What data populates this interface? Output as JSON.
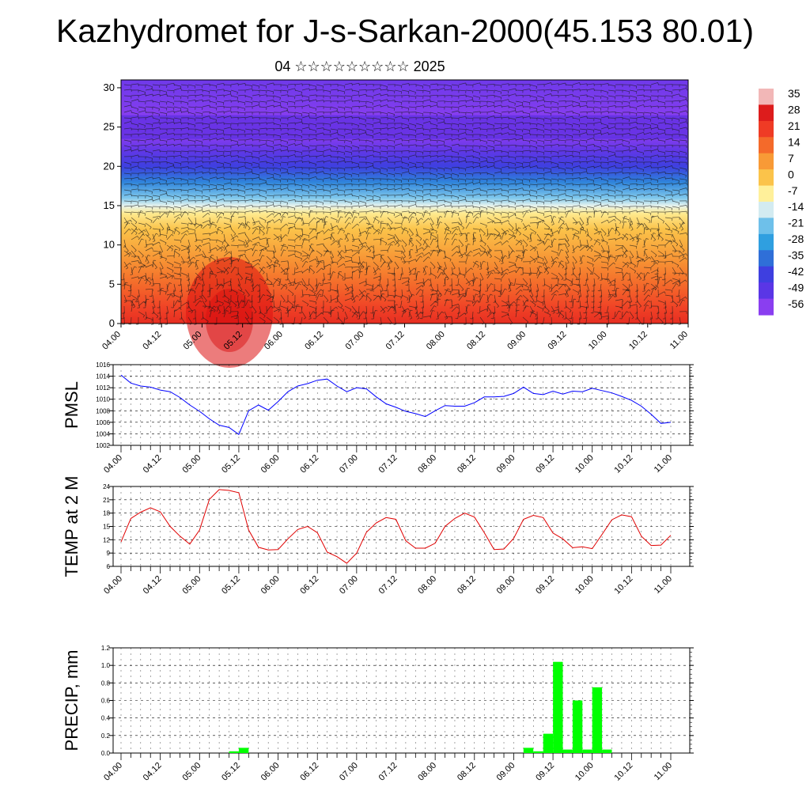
{
  "title": "Kazhydromet for J-s-Sarkan-2000(45.153 80.01)",
  "subtitle": "04 ☆☆☆☆☆☆☆☆☆ 2025",
  "time_ticks": [
    "04.00",
    "04.12",
    "05.00",
    "05.12",
    "06.00",
    "06.12",
    "07.00",
    "07.12",
    "08.00",
    "08.12",
    "09.00",
    "09.12",
    "10.00",
    "10.12",
    "11.00"
  ],
  "colorbar": {
    "labels": [
      "35",
      "28",
      "21",
      "14",
      "7",
      "0",
      "-7",
      "-14",
      "-21",
      "-28",
      "-35",
      "-42",
      "-49",
      "-56"
    ],
    "colors": [
      "#f5c6c6",
      "#d7191c",
      "#f0432a",
      "#f46d43",
      "#f9a03f",
      "#fdbf4f",
      "#feeaa0",
      "#d6ecf5",
      "#62b4e3",
      "#2b83c9",
      "#3f4fd8",
      "#5a3be0",
      "#7a35e8",
      "#9a3df0"
    ]
  },
  "chart_data": [
    {
      "type": "heatmap",
      "title": "",
      "description_of_field": "vertical cross-section with wind barbs",
      "x_ticks": [
        "04.00",
        "04.12",
        "05.00",
        "05.12",
        "06.00",
        "06.12",
        "07.00",
        "07.12",
        "08.00",
        "08.12",
        "09.00",
        "09.12",
        "10.00",
        "10.12",
        "11.00"
      ],
      "y_ticks": [
        0,
        5,
        10,
        15,
        20,
        25,
        30
      ],
      "ylim": [
        0,
        31
      ],
      "levels": [
        0,
        2,
        4,
        6,
        8,
        10,
        12,
        14,
        15,
        16,
        18,
        20,
        22,
        24,
        26,
        28,
        31
      ],
      "level_temps": [
        24,
        20,
        16,
        12,
        8,
        4,
        0,
        -6,
        -12,
        -20,
        -32,
        -42,
        -50,
        -57,
        -56,
        -54,
        -52
      ]
    },
    {
      "type": "line",
      "ylabel": "PMSL",
      "ylim": [
        1002,
        1016
      ],
      "y_ticks": [
        1002,
        1004,
        1006,
        1008,
        1010,
        1012,
        1014,
        1016
      ],
      "color": "#0000ff",
      "x_ticks": [
        "04.00",
        "04.12",
        "05.00",
        "05.12",
        "06.00",
        "06.12",
        "07.00",
        "07.12",
        "08.00",
        "08.12",
        "09.00",
        "09.12",
        "10.00",
        "10.12",
        "11.00"
      ],
      "values": [
        1014.2,
        1012.8,
        1012.3,
        1012.1,
        1011.6,
        1011.3,
        1010.3,
        1009.0,
        1007.9,
        1006.6,
        1005.5,
        1005.1,
        1003.9,
        1008.0,
        1009.0,
        1008.1,
        1009.6,
        1011.3,
        1012.3,
        1012.7,
        1013.3,
        1013.5,
        1012.3,
        1011.3,
        1012.0,
        1011.8,
        1010.4,
        1009.2,
        1008.6,
        1007.9,
        1007.5,
        1007.0,
        1008.0,
        1008.9,
        1008.8,
        1008.8,
        1009.4,
        1010.4,
        1010.4,
        1010.5,
        1011.0,
        1012.1,
        1011.0,
        1010.8,
        1011.4,
        1010.9,
        1011.4,
        1011.3,
        1011.9,
        1011.5,
        1011.1,
        1010.5,
        1009.8,
        1008.8,
        1007.4,
        1005.8,
        1006.0
      ]
    },
    {
      "type": "line",
      "ylabel": "TEMP at 2 M",
      "ylim": [
        6,
        24
      ],
      "y_ticks": [
        6,
        9,
        12,
        15,
        18,
        21,
        24
      ],
      "color": "#e00000",
      "x_ticks": [
        "04.00",
        "04.12",
        "05.00",
        "05.12",
        "06.00",
        "06.12",
        "07.00",
        "07.12",
        "08.00",
        "08.12",
        "09.00",
        "09.12",
        "10.00",
        "10.12",
        "11.00"
      ],
      "values": [
        11.5,
        16.8,
        18.2,
        19.2,
        18.3,
        15.0,
        12.8,
        11.0,
        14.2,
        21.1,
        23.3,
        23.1,
        22.6,
        14.2,
        10.3,
        9.7,
        9.8,
        12.2,
        14.3,
        15.0,
        13.6,
        9.2,
        8.2,
        6.7,
        9.0,
        13.7,
        15.8,
        17.0,
        16.6,
        11.8,
        10.1,
        10.1,
        11.2,
        15.0,
        16.8,
        18.0,
        17.1,
        13.6,
        9.8,
        9.9,
        12.3,
        16.6,
        17.5,
        17.0,
        13.5,
        12.2,
        10.2,
        10.4,
        10.0,
        13.2,
        16.5,
        17.6,
        17.2,
        12.8,
        10.7,
        10.8,
        13.0
      ]
    },
    {
      "type": "bar",
      "ylabel": "PRECIP, mm",
      "ylim": [
        0,
        1.2
      ],
      "y_ticks": [
        "0.0",
        "0.2",
        "0.4",
        "0.6",
        "0.8",
        "1.0",
        "1.2"
      ],
      "color": "#00ff00",
      "x_ticks": [
        "04.00",
        "04.12",
        "05.00",
        "05.12",
        "06.00",
        "06.12",
        "07.00",
        "07.12",
        "08.00",
        "08.12",
        "09.00",
        "09.12",
        "10.00",
        "10.12",
        "11.00"
      ],
      "values": [
        0,
        0,
        0,
        0,
        0,
        0,
        0,
        0,
        0,
        0,
        0,
        0.02,
        0.06,
        0,
        0,
        0,
        0,
        0,
        0,
        0,
        0,
        0,
        0,
        0,
        0,
        0,
        0,
        0,
        0,
        0,
        0,
        0,
        0,
        0,
        0,
        0,
        0,
        0,
        0,
        0,
        0,
        0.06,
        0.02,
        0.22,
        1.04,
        0.04,
        0.6,
        0.04,
        0.75,
        0.04,
        0,
        0,
        0,
        0,
        0,
        0,
        0
      ]
    }
  ]
}
